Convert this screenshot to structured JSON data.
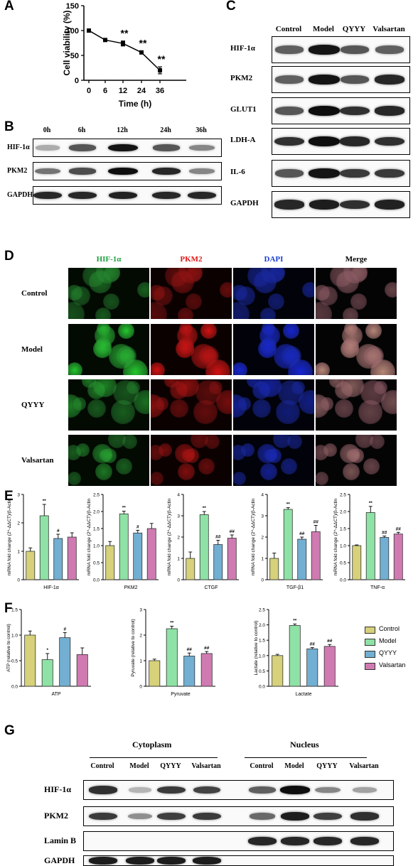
{
  "panels": {
    "A": "A",
    "B": "B",
    "C": "C",
    "D": "D",
    "E": "E",
    "F": "F",
    "G": "G"
  },
  "panelA": {
    "chart_data": {
      "type": "line",
      "x": [
        0,
        6,
        12,
        24,
        36
      ],
      "y": [
        100,
        81,
        74,
        56,
        20
      ],
      "err": [
        1,
        2,
        5,
        3,
        7
      ],
      "sig": [
        "",
        "",
        "**",
        "**",
        "**"
      ],
      "xlabel": "Time (h)",
      "ylabel": "Cell viability (%)",
      "ylim": [
        0,
        150
      ],
      "yticks": [
        0,
        50,
        100,
        150
      ],
      "xticks": [
        "0",
        "6",
        "12",
        "24",
        "36"
      ]
    }
  },
  "panelB": {
    "lanes": [
      "0h",
      "6h",
      "12h",
      "24h",
      "36h"
    ],
    "rows": [
      "HIF-1α",
      "PKM2",
      "GAPDH"
    ]
  },
  "panelC": {
    "lanes": [
      "Control",
      "Model",
      "QYYY",
      "Valsartan"
    ],
    "rows": [
      "HIF-1α",
      "PKM2",
      "GLUT1",
      "LDH-A",
      "IL-6",
      "GAPDH"
    ]
  },
  "panelD": {
    "channels": [
      "HIF-1α",
      "PKM2",
      "DAPI",
      "Merge"
    ],
    "channel_colors": [
      "#1fa040",
      "#e01818",
      "#1a3fd0",
      "#000000"
    ],
    "rows": [
      "Control",
      "Model",
      "QYYY",
      "Valsartan"
    ]
  },
  "panelE": {
    "chart_data": [
      {
        "type": "bar",
        "ylabel": "mRNA fold change (2^-ΔΔCT)/β-Actin",
        "xlabel": "HIF-1α",
        "ylim": [
          0,
          3
        ],
        "yticks": [
          "0",
          "1",
          "2",
          "3"
        ],
        "values": [
          1.0,
          2.25,
          1.45,
          1.5
        ],
        "err": [
          0.12,
          0.4,
          0.15,
          0.15
        ],
        "sig": [
          "",
          "**",
          "#",
          ""
        ]
      },
      {
        "type": "bar",
        "ylabel": "mRNA fold change (2^-ΔΔCT)/β-Actin",
        "xlabel": "PKM2",
        "ylim": [
          0,
          2.5
        ],
        "yticks": [
          "0.0",
          "0.5",
          "1.0",
          "1.5",
          "2.0",
          "2.5"
        ],
        "values": [
          1.0,
          1.93,
          1.37,
          1.5
        ],
        "err": [
          0.12,
          0.08,
          0.08,
          0.15
        ],
        "sig": [
          "",
          "**",
          "#",
          ""
        ]
      },
      {
        "type": "bar",
        "ylabel": "mRNA fold change (2^-ΔΔCT)/β-Actin",
        "xlabel": "CTGF",
        "ylim": [
          0,
          4
        ],
        "yticks": [
          "0",
          "1",
          "2",
          "3",
          "4"
        ],
        "values": [
          1.0,
          3.05,
          1.65,
          1.95
        ],
        "err": [
          0.3,
          0.15,
          0.2,
          0.15
        ],
        "sig": [
          "",
          "**",
          "##",
          "##"
        ]
      },
      {
        "type": "bar",
        "ylabel": "mRNA fold change (2^-ΔΔCT)/β-Actin",
        "xlabel": "TGF-β1",
        "ylim": [
          0,
          4
        ],
        "yticks": [
          "0",
          "1",
          "2",
          "3",
          "4"
        ],
        "values": [
          1.0,
          3.3,
          1.9,
          2.25
        ],
        "err": [
          0.25,
          0.08,
          0.1,
          0.3
        ],
        "sig": [
          "",
          "**",
          "##",
          "##"
        ]
      },
      {
        "type": "bar",
        "ylabel": "mRNA fold change (2^-ΔΔCT)/β-Actin",
        "xlabel": "TNF-α",
        "ylim": [
          0,
          2.5
        ],
        "yticks": [
          "0.0",
          "0.5",
          "1.0",
          "1.5",
          "2.0",
          "2.5"
        ],
        "values": [
          1.0,
          1.97,
          1.24,
          1.34
        ],
        "err": [
          0.02,
          0.18,
          0.04,
          0.05
        ],
        "sig": [
          "",
          "**",
          "##",
          "##"
        ]
      }
    ]
  },
  "panelF": {
    "chart_data": [
      {
        "type": "bar",
        "ylabel": "ATP (relative to control)",
        "xlabel": "ATP",
        "ylim": [
          0,
          1.5
        ],
        "yticks": [
          "0.0",
          "0.5",
          "1.0",
          "1.5"
        ],
        "values": [
          1.0,
          0.52,
          0.95,
          0.62
        ],
        "err": [
          0.08,
          0.12,
          0.1,
          0.13
        ],
        "sig": [
          "",
          "*",
          "#",
          ""
        ]
      },
      {
        "type": "bar",
        "ylabel": "Pyruvate (relative to control)",
        "xlabel": "Pyruvate",
        "ylim": [
          0,
          3
        ],
        "yticks": [
          "0",
          "1",
          "2",
          "3"
        ],
        "values": [
          1.0,
          2.25,
          1.18,
          1.28
        ],
        "err": [
          0.06,
          0.1,
          0.12,
          0.08
        ],
        "sig": [
          "",
          "**",
          "##",
          "##"
        ]
      },
      {
        "type": "bar",
        "ylabel": "Lactate (relative to control)",
        "xlabel": "Lactate",
        "ylim": [
          0,
          2.5
        ],
        "yticks": [
          "0.0",
          "0.5",
          "1.0",
          "1.5",
          "2.0",
          "2.5"
        ],
        "values": [
          1.0,
          1.98,
          1.22,
          1.3
        ],
        "err": [
          0.04,
          0.05,
          0.04,
          0.06
        ],
        "sig": [
          "",
          "**",
          "##",
          "##"
        ]
      }
    ],
    "legend": [
      {
        "name": "Control",
        "color": "#d6d17a"
      },
      {
        "name": "Model",
        "color": "#8fe2a5"
      },
      {
        "name": "QYYY",
        "color": "#72afd2"
      },
      {
        "name": "Valsartan",
        "color": "#d07ab2"
      }
    ]
  },
  "panelG": {
    "groups": [
      "Cytoplasm",
      "Nucleus"
    ],
    "lanes": [
      "Control",
      "Model",
      "QYYY",
      "Valsartan",
      "Control",
      "Model",
      "QYYY",
      "Valsartan"
    ],
    "rows": [
      "HIF-1α",
      "PKM2",
      "Lamin B",
      "GAPDH"
    ]
  }
}
